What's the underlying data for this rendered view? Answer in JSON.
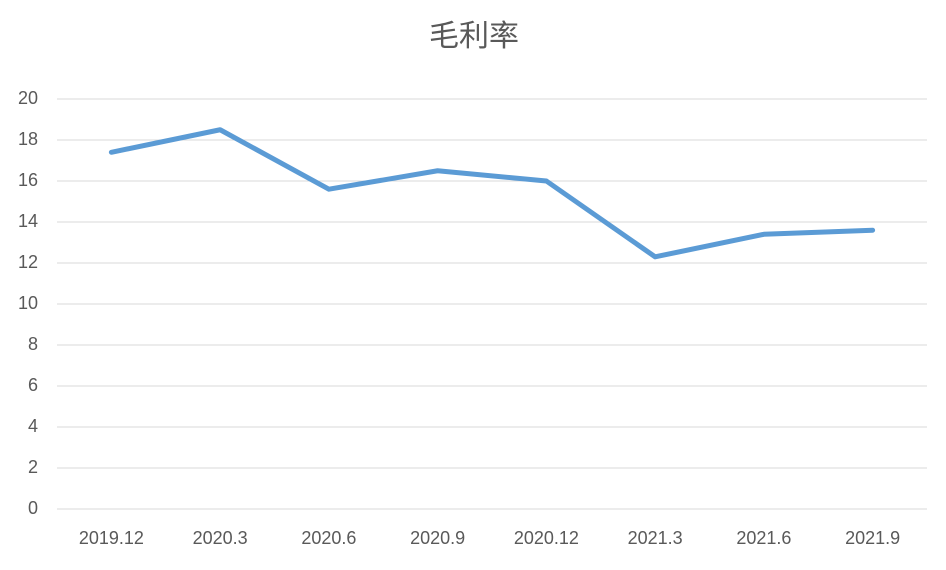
{
  "chart_data": {
    "type": "line",
    "title": "毛利率",
    "categories": [
      "2019.12",
      "2020.3",
      "2020.6",
      "2020.9",
      "2020.12",
      "2021.3",
      "2021.6",
      "2021.9"
    ],
    "series": [
      {
        "name": "毛利率",
        "color": "#5b9bd5",
        "values": [
          17.4,
          18.5,
          15.6,
          16.5,
          16.0,
          12.3,
          13.4,
          13.6
        ]
      }
    ],
    "ylim": [
      0,
      20
    ],
    "yticks": [
      0,
      2,
      4,
      6,
      8,
      10,
      12,
      14,
      16,
      18,
      20
    ],
    "grid": true
  }
}
